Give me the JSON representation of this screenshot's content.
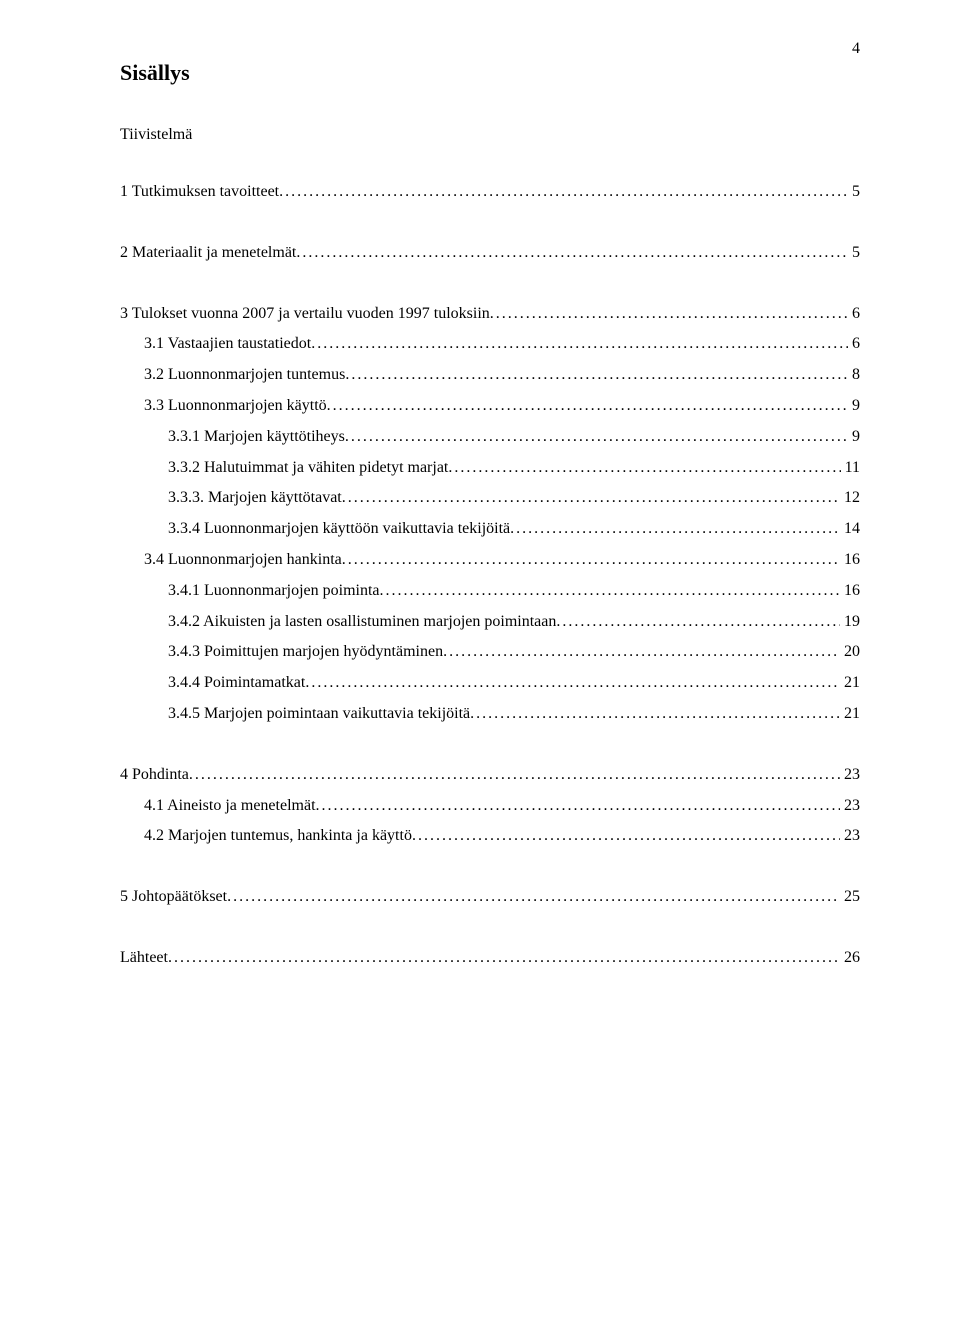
{
  "page_number": "4",
  "heading": "Sisällys",
  "subheading": "Tiivistelmä",
  "toc": [
    {
      "label": "1 Tutkimuksen tavoitteet",
      "page": "5",
      "indent": 0,
      "gap": "large"
    },
    {
      "label": "2 Materiaalit ja menetelmät",
      "page": "5",
      "indent": 0,
      "gap": "large"
    },
    {
      "label": "3 Tulokset vuonna 2007 ja vertailu vuoden 1997 tuloksiin",
      "page": "6",
      "indent": 0,
      "gap": "small"
    },
    {
      "label": "3.1 Vastaajien taustatiedot",
      "page": "6",
      "indent": 1,
      "gap": "small"
    },
    {
      "label": "3.2 Luonnonmarjojen tuntemus",
      "page": "8",
      "indent": 1,
      "gap": "small"
    },
    {
      "label": "3.3 Luonnonmarjojen käyttö",
      "page": "9",
      "indent": 1,
      "gap": "small"
    },
    {
      "label": "3.3.1 Marjojen käyttötiheys",
      "page": "9",
      "indent": 2,
      "gap": "small"
    },
    {
      "label": "3.3.2 Halutuimmat ja vähiten pidetyt marjat",
      "page": "11",
      "indent": 2,
      "gap": "small"
    },
    {
      "label": "3.3.3. Marjojen käyttötavat",
      "page": "12",
      "indent": 2,
      "gap": "small"
    },
    {
      "label": "3.3.4 Luonnonmarjojen käyttöön vaikuttavia tekijöitä",
      "page": "14",
      "indent": 2,
      "gap": "small"
    },
    {
      "label": "3.4 Luonnonmarjojen hankinta",
      "page": "16",
      "indent": 1,
      "gap": "small"
    },
    {
      "label": "3.4.1 Luonnonmarjojen poiminta",
      "page": "16",
      "indent": 2,
      "gap": "small"
    },
    {
      "label": "3.4.2 Aikuisten ja lasten osallistuminen marjojen poimintaan",
      "page": "19",
      "indent": 2,
      "gap": "small"
    },
    {
      "label": "3.4.3 Poimittujen marjojen hyödyntäminen",
      "page": "20",
      "indent": 2,
      "gap": "small"
    },
    {
      "label": "3.4.4 Poimintamatkat",
      "page": "21",
      "indent": 2,
      "gap": "small"
    },
    {
      "label": "3.4.5 Marjojen poimintaan vaikuttavia tekijöitä",
      "page": "21",
      "indent": 2,
      "gap": "large"
    },
    {
      "label": "4 Pohdinta",
      "page": "23",
      "indent": 0,
      "gap": "small"
    },
    {
      "label": "4.1 Aineisto ja menetelmät",
      "page": "23",
      "indent": 1,
      "gap": "small"
    },
    {
      "label": "4.2 Marjojen tuntemus, hankinta ja käyttö",
      "page": "23",
      "indent": 1,
      "gap": "large"
    },
    {
      "label": "5 Johtopäätökset",
      "page": "25",
      "indent": 0,
      "gap": "large"
    },
    {
      "label": "Lähteet",
      "page": "26",
      "indent": 0,
      "gap": "small"
    }
  ]
}
